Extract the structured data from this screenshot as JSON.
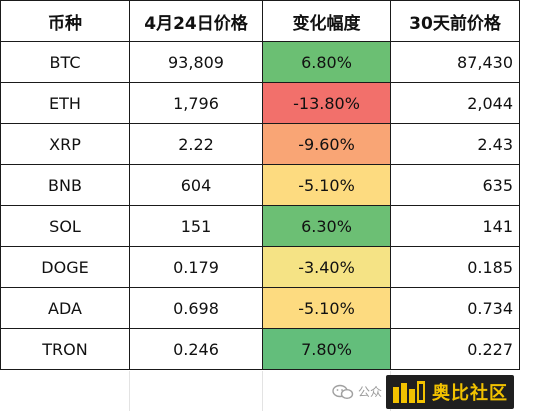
{
  "table": {
    "headers": [
      "币种",
      "4月24日价格",
      "变化幅度",
      "30天前价格"
    ],
    "rows": [
      {
        "coin": "BTC",
        "price": "93,809",
        "change": "6.80%",
        "prev": "87,430",
        "change_color": "#6bbf73"
      },
      {
        "coin": "ETH",
        "price": "1,796",
        "change": "-13.80%",
        "prev": "2,044",
        "change_color": "#f2706b"
      },
      {
        "coin": "XRP",
        "price": "2.22",
        "change": "-9.60%",
        "prev": "2.43",
        "change_color": "#f9a575"
      },
      {
        "coin": "BNB",
        "price": "604",
        "change": "-5.10%",
        "prev": "635",
        "change_color": "#fddb80"
      },
      {
        "coin": "SOL",
        "price": "151",
        "change": "6.30%",
        "prev": "141",
        "change_color": "#6cbf74"
      },
      {
        "coin": "DOGE",
        "price": "0.179",
        "change": "-3.40%",
        "prev": "0.185",
        "change_color": "#f5e385"
      },
      {
        "coin": "ADA",
        "price": "0.698",
        "change": "-5.10%",
        "prev": "0.734",
        "change_color": "#fddb80"
      },
      {
        "coin": "TRON",
        "price": "0.246",
        "change": "7.80%",
        "prev": "0.227",
        "change_color": "#63be7b"
      }
    ]
  },
  "watermark": {
    "prefix": "公众",
    "brand": "奥比社区",
    "icon": "wechat-icon",
    "brand_color": "#f2c200"
  }
}
